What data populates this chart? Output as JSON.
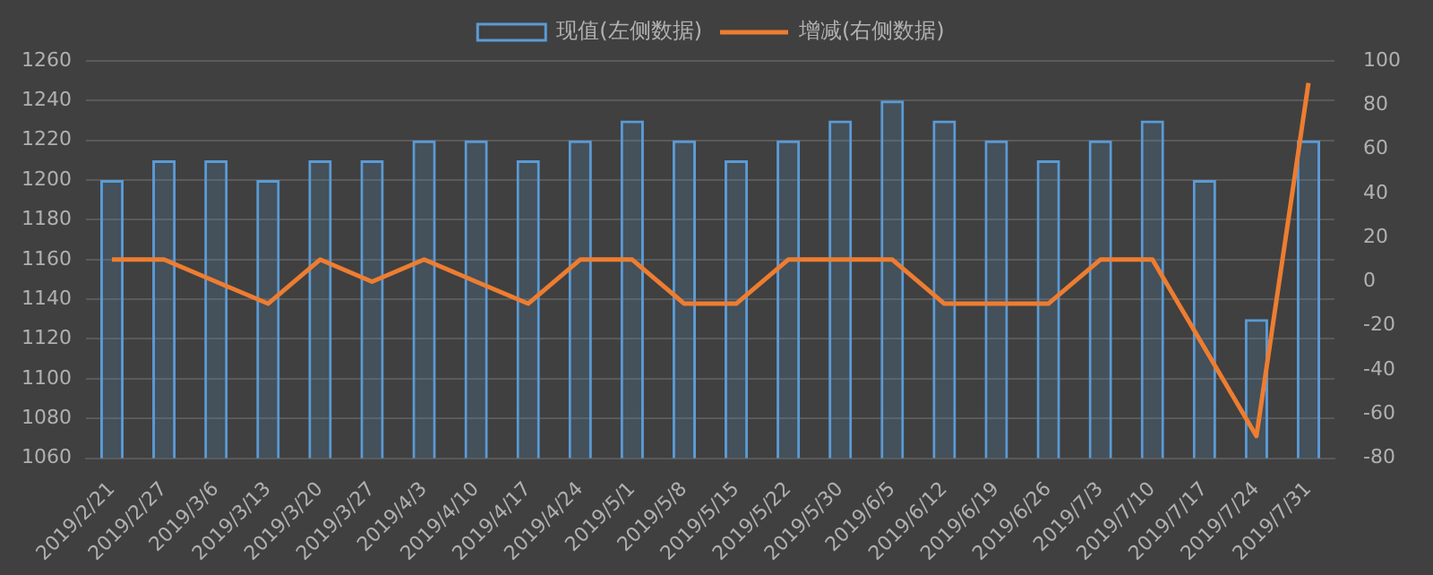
{
  "chart_data": {
    "type": "bar",
    "categories": [
      "2019/2/21",
      "2019/2/27",
      "2019/3/6",
      "2019/3/13",
      "2019/3/20",
      "2019/3/27",
      "2019/4/3",
      "2019/4/10",
      "2019/4/17",
      "2019/4/24",
      "2019/5/1",
      "2019/5/8",
      "2019/5/15",
      "2019/5/22",
      "2019/5/30",
      "2019/6/5",
      "2019/6/12",
      "2019/6/19",
      "2019/6/26",
      "2019/7/3",
      "2019/7/10",
      "2019/7/17",
      "2019/7/24",
      "2019/7/31"
    ],
    "series": [
      {
        "name": "现值(左侧数据)",
        "color": "#5b9bd5",
        "values": [
          1200,
          1210,
          1210,
          1200,
          1210,
          1210,
          1220,
          1220,
          1210,
          1220,
          1230,
          1220,
          1210,
          1220,
          1230,
          1240,
          1230,
          1220,
          1210,
          1220,
          1230,
          1200,
          1130,
          1220
        ]
      },
      {
        "name": "增减(右侧数据)",
        "type": "line",
        "axis": "y2",
        "color": "#ed7d31",
        "values": [
          10,
          10,
          0,
          -10,
          10,
          0,
          10,
          0,
          -10,
          10,
          10,
          -10,
          -10,
          10,
          10,
          10,
          -10,
          -10,
          -10,
          10,
          10,
          -30,
          -70,
          90
        ]
      }
    ],
    "ylim": [
      1060,
      1260
    ],
    "yticks": [
      1060,
      1080,
      1100,
      1120,
      1140,
      1160,
      1180,
      1200,
      1220,
      1240,
      1260
    ],
    "y2lim": [
      -80,
      100
    ],
    "y2ticks": [
      -80,
      -60,
      -40,
      -20,
      0,
      20,
      40,
      60,
      80,
      100
    ],
    "grid": "y",
    "legend": "top",
    "marker": "none",
    "line_style": "solid"
  }
}
